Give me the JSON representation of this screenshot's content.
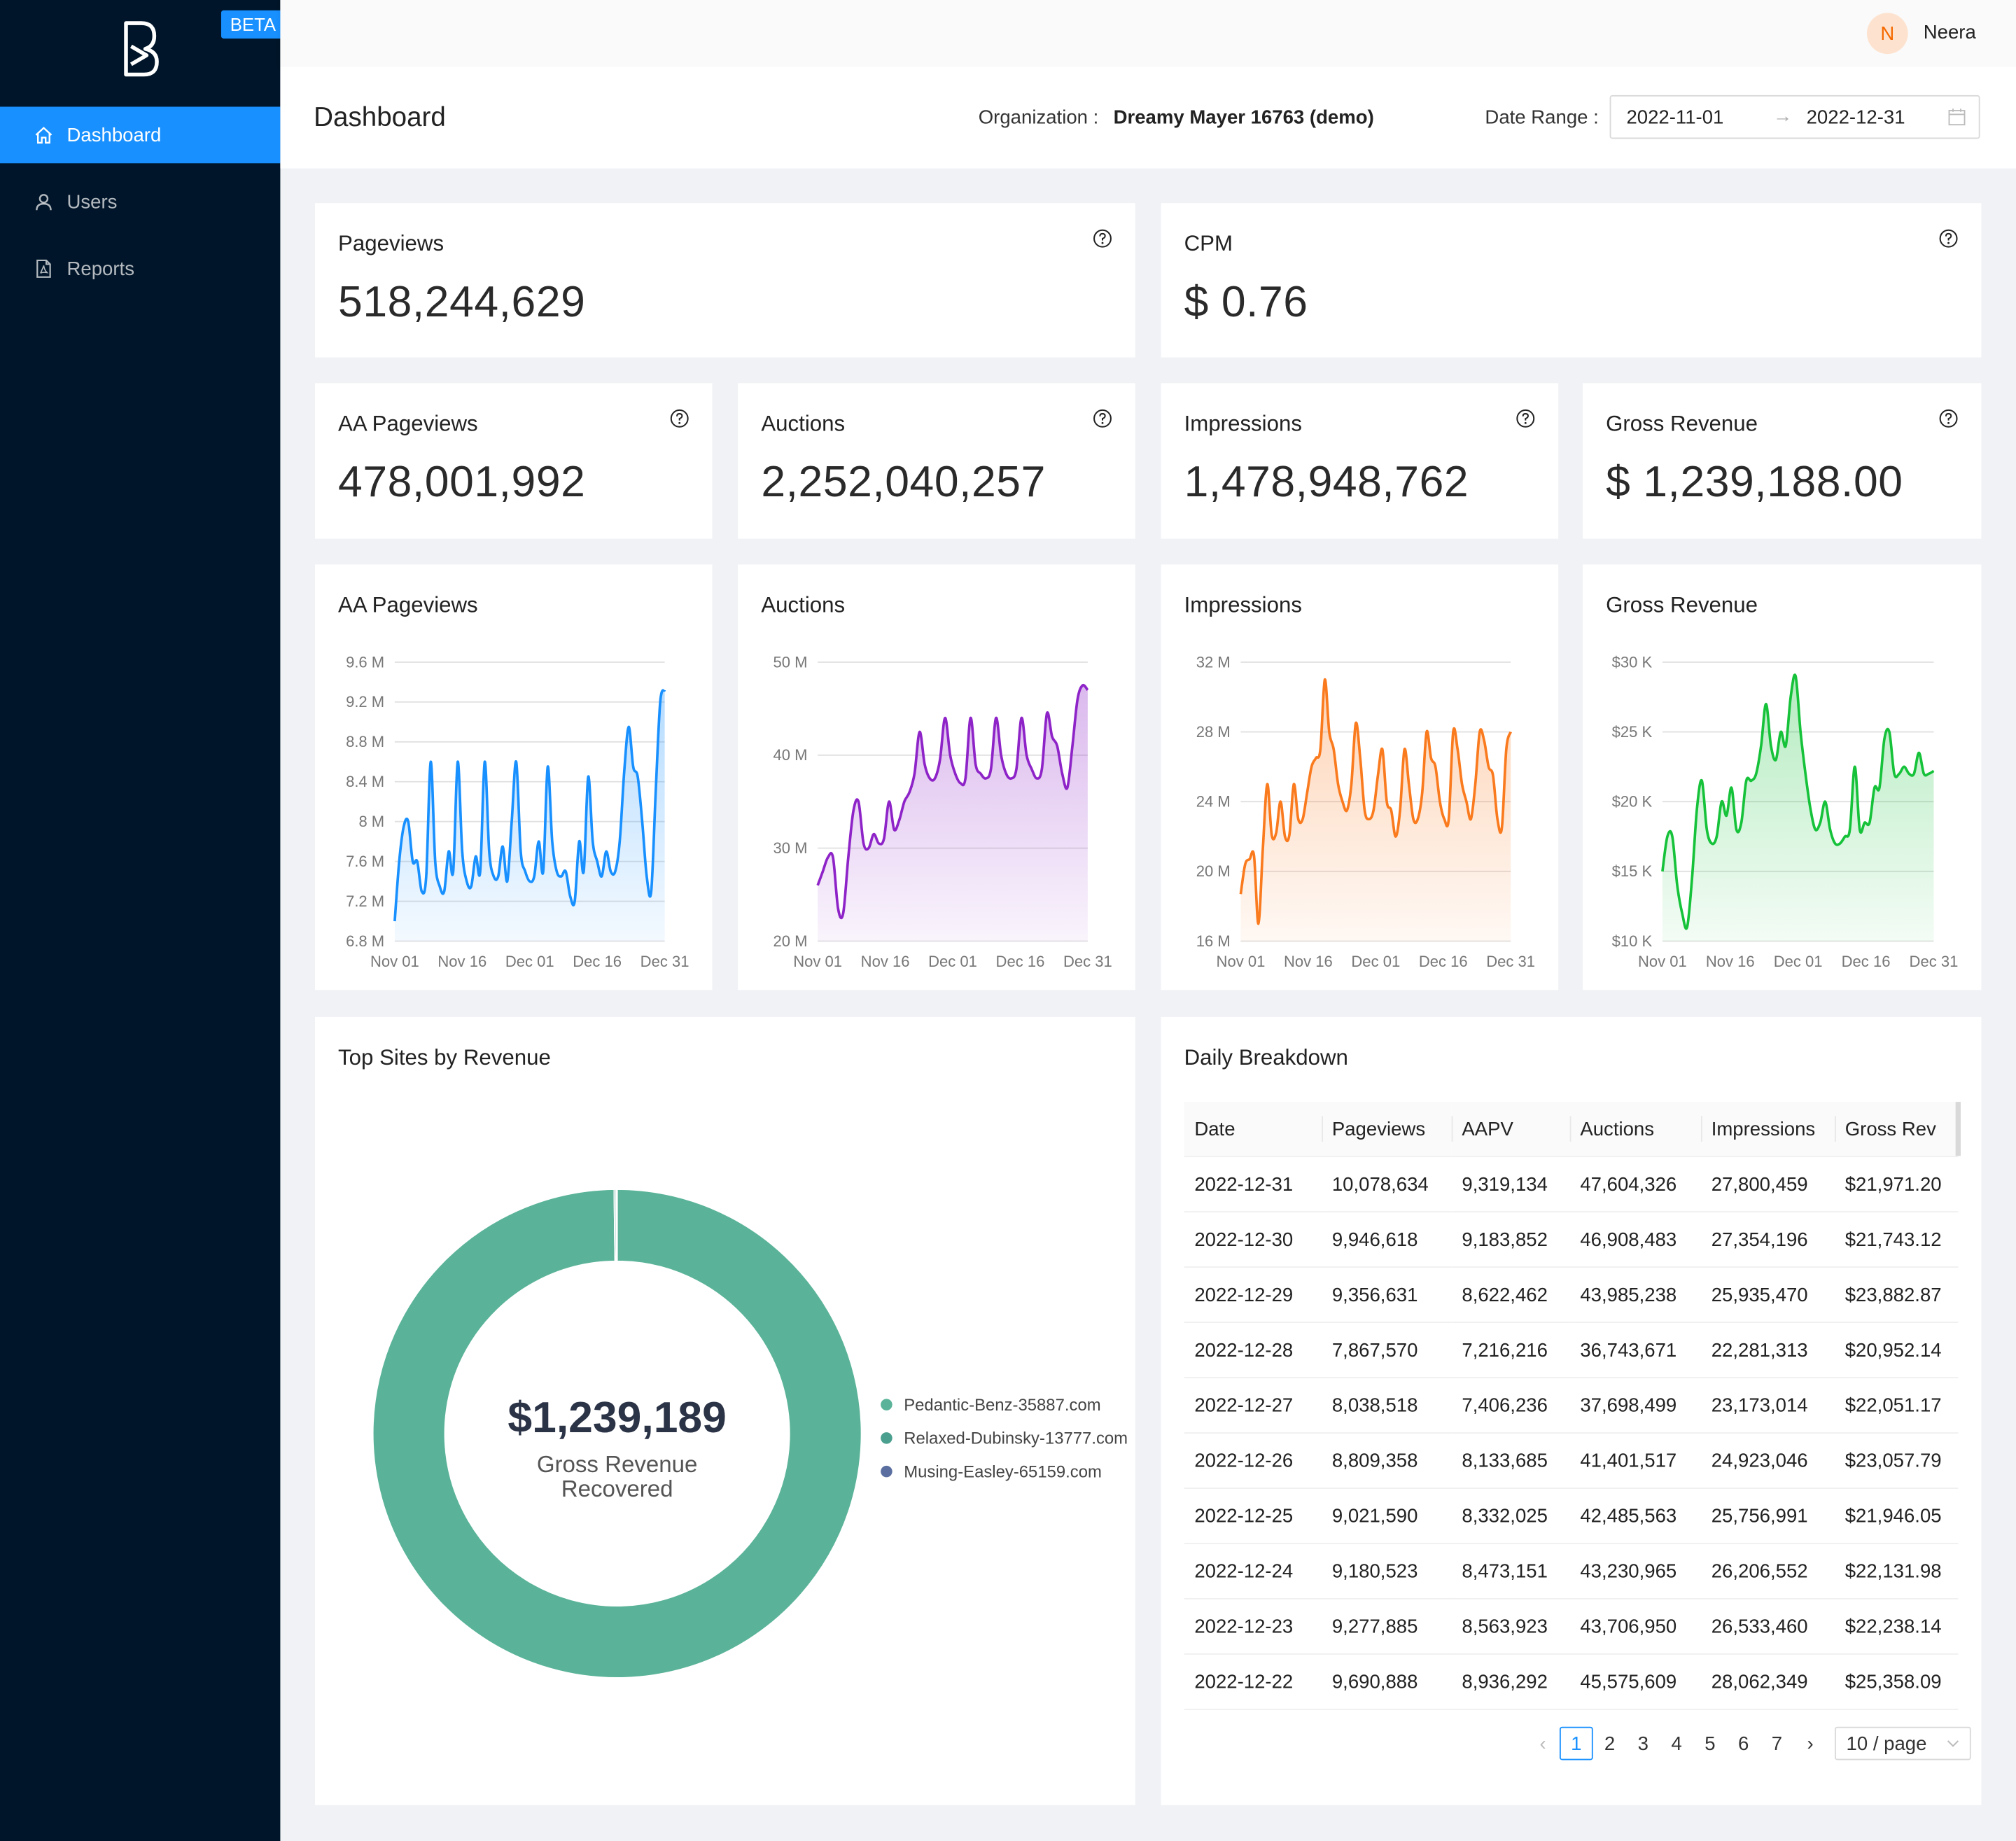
{
  "app": {
    "beta_label": "BETA",
    "user": {
      "initial": "N",
      "name": "Neera"
    }
  },
  "sidebar": {
    "items": [
      {
        "label": "Dashboard",
        "icon": "home-icon",
        "active": true
      },
      {
        "label": "Users",
        "icon": "user-icon",
        "active": false
      },
      {
        "label": "Reports",
        "icon": "file-pdf-icon",
        "active": false
      }
    ]
  },
  "header": {
    "title": "Dashboard",
    "org_label": "Organization :",
    "org_value": "Dreamy Mayer 16763 (demo)",
    "date_range_label": "Date Range :",
    "date_start": "2022-11-01",
    "date_arrow": "→",
    "date_end": "2022-12-31"
  },
  "metrics": {
    "pageviews": {
      "label": "Pageviews",
      "value": "518,244,629"
    },
    "cpm": {
      "label": "CPM",
      "value": "$ 0.76"
    },
    "aa_pageviews": {
      "label": "AA Pageviews",
      "value": "478,001,992"
    },
    "auctions": {
      "label": "Auctions",
      "value": "2,252,040,257"
    },
    "impressions": {
      "label": "Impressions",
      "value": "1,478,948,762"
    },
    "gross_revenue": {
      "label": "Gross Revenue",
      "value": "$ 1,239,188.00"
    }
  },
  "chart_data": [
    {
      "type": "area",
      "title": "AA Pageviews",
      "color": "#1890ff",
      "x_tick_labels": [
        "Nov 01",
        "Nov 16",
        "Dec 01",
        "Dec 16",
        "Dec 31"
      ],
      "y_tick_labels": [
        "6.8 M",
        "7.2 M",
        "7.6 M",
        "8 M",
        "8.4 M",
        "8.8 M",
        "9.2 M",
        "9.6 M"
      ],
      "ylim": [
        6.8,
        9.6
      ],
      "unit": "M",
      "values": [
        7.0,
        7.6,
        7.95,
        8.0,
        7.6,
        7.6,
        7.3,
        7.45,
        8.6,
        7.6,
        7.35,
        7.3,
        7.7,
        7.5,
        8.6,
        7.7,
        7.4,
        7.35,
        7.65,
        7.5,
        8.6,
        7.7,
        7.45,
        7.45,
        7.75,
        7.4,
        8.0,
        8.6,
        7.7,
        7.5,
        7.4,
        7.45,
        7.8,
        7.5,
        8.55,
        7.8,
        7.5,
        7.45,
        7.5,
        7.25,
        7.2,
        7.8,
        7.5,
        8.45,
        7.8,
        7.6,
        7.45,
        7.7,
        7.5,
        7.5,
        7.8,
        8.5,
        8.95,
        8.55,
        8.45,
        8.0,
        7.45,
        7.3,
        8.3,
        9.2,
        9.32
      ]
    },
    {
      "type": "area",
      "title": "Auctions",
      "color": "#8e24c8",
      "x_tick_labels": [
        "Nov 01",
        "Nov 16",
        "Dec 01",
        "Dec 16",
        "Dec 31"
      ],
      "y_tick_labels": [
        "20 M",
        "30 M",
        "40 M",
        "50 M"
      ],
      "ylim": [
        20,
        50
      ],
      "unit": "M",
      "values": [
        26.0,
        27.5,
        29.0,
        29.0,
        23.5,
        23.0,
        29.0,
        34.0,
        35.0,
        30.5,
        30.0,
        31.5,
        30.5,
        31.0,
        35.0,
        32.0,
        33.0,
        35.0,
        36.0,
        38.0,
        42.5,
        39.0,
        37.5,
        37.5,
        39.5,
        44.0,
        40.0,
        38.0,
        37.0,
        37.5,
        44.0,
        39.0,
        38.0,
        37.5,
        38.5,
        44.0,
        40.0,
        38.0,
        37.5,
        38.5,
        44.0,
        40.0,
        38.5,
        37.5,
        38.5,
        44.5,
        42.0,
        41.0,
        38.0,
        36.5,
        41.0,
        46.0,
        47.5,
        47.0
      ]
    },
    {
      "type": "area",
      "title": "Impressions",
      "color": "#fa7a1e",
      "x_tick_labels": [
        "Nov 01",
        "Nov 16",
        "Dec 01",
        "Dec 16",
        "Dec 31"
      ],
      "y_tick_labels": [
        "16 M",
        "20 M",
        "24 M",
        "28 M",
        "32 M"
      ],
      "ylim": [
        16,
        32
      ],
      "unit": "M",
      "values": [
        18.7,
        20.4,
        20.7,
        20.9,
        17.0,
        21.3,
        25.0,
        22.1,
        22.2,
        24.0,
        22.0,
        22.1,
        25.0,
        23.0,
        23.0,
        24.5,
        26.0,
        26.5,
        27.0,
        31.0,
        28.0,
        27.0,
        25.0,
        24.0,
        23.5,
        25.0,
        28.5,
        26.5,
        23.5,
        23.0,
        23.5,
        25.5,
        27.0,
        24.0,
        23.5,
        22.0,
        23.5,
        27.0,
        25.0,
        23.0,
        23.0,
        24.5,
        28.0,
        26.5,
        26.0,
        24.0,
        23.0,
        23.0,
        28.0,
        27.0,
        25.0,
        24.0,
        23.0,
        25.0,
        28.0,
        27.5,
        26.0,
        25.5,
        23.0,
        22.5,
        27.0,
        28.0
      ]
    },
    {
      "type": "area",
      "title": "Gross Revenue",
      "color": "#16c23a",
      "x_tick_labels": [
        "Nov 01",
        "Nov 16",
        "Dec 01",
        "Dec 16",
        "Dec 31"
      ],
      "y_tick_labels": [
        "$10 K",
        "$15 K",
        "$20 K",
        "$25 K",
        "$30 K"
      ],
      "ylim": [
        10,
        30
      ],
      "unit": "K",
      "values": [
        15.0,
        17.5,
        17.5,
        14.0,
        12.0,
        11.0,
        14.5,
        19.5,
        21.5,
        18.0,
        17.0,
        17.5,
        20.0,
        19.0,
        21.0,
        18.0,
        18.5,
        21.5,
        21.5,
        22.0,
        24.0,
        27.0,
        24.0,
        23.0,
        25.0,
        24.0,
        27.5,
        29.0,
        25.0,
        22.0,
        19.5,
        18.0,
        18.5,
        20.0,
        18.0,
        17.0,
        17.0,
        17.5,
        18.0,
        22.5,
        18.0,
        18.5,
        18.5,
        21.0,
        21.0,
        24.5,
        25.0,
        22.0,
        22.0,
        22.5,
        22.0,
        22.0,
        23.5,
        22.0,
        22.0,
        22.2
      ]
    },
    {
      "type": "pie",
      "title": "Top Sites by Revenue",
      "center_total": "$1,239,189",
      "center_caption_line1": "Gross Revenue",
      "center_caption_line2": "Recovered",
      "slices": [
        {
          "label": "Pedantic-Benz-35887.com",
          "value": 1236789,
          "color": "#5ab398"
        },
        {
          "label": "Relaxed-Dubinsky-13777.com",
          "value": 1500,
          "color": "#4a9f8e"
        },
        {
          "label": "Musing-Easley-65159.com",
          "value": 900,
          "color": "#5a6fa0"
        }
      ]
    }
  ],
  "breakdown": {
    "title": "Daily Breakdown",
    "columns": [
      "Date",
      "Pageviews",
      "AAPV",
      "Auctions",
      "Impressions",
      "Gross Rev"
    ],
    "rows": [
      [
        "2022-12-31",
        "10,078,634",
        "9,319,134",
        "47,604,326",
        "27,800,459",
        "$21,971.20"
      ],
      [
        "2022-12-30",
        "9,946,618",
        "9,183,852",
        "46,908,483",
        "27,354,196",
        "$21,743.12"
      ],
      [
        "2022-12-29",
        "9,356,631",
        "8,622,462",
        "43,985,238",
        "25,935,470",
        "$23,882.87"
      ],
      [
        "2022-12-28",
        "7,867,570",
        "7,216,216",
        "36,743,671",
        "22,281,313",
        "$20,952.14"
      ],
      [
        "2022-12-27",
        "8,038,518",
        "7,406,236",
        "37,698,499",
        "23,173,014",
        "$22,051.17"
      ],
      [
        "2022-12-26",
        "8,809,358",
        "8,133,685",
        "41,401,517",
        "24,923,046",
        "$23,057.79"
      ],
      [
        "2022-12-25",
        "9,021,590",
        "8,332,025",
        "42,485,563",
        "25,756,991",
        "$21,946.05"
      ],
      [
        "2022-12-24",
        "9,180,523",
        "8,473,151",
        "43,230,965",
        "26,206,552",
        "$22,131.98"
      ],
      [
        "2022-12-23",
        "9,277,885",
        "8,563,923",
        "43,706,950",
        "26,533,460",
        "$22,238.14"
      ],
      [
        "2022-12-22",
        "9,690,888",
        "8,936,292",
        "45,575,609",
        "28,062,349",
        "$25,358.09"
      ]
    ],
    "pagination": {
      "prev": "‹",
      "pages": [
        "1",
        "2",
        "3",
        "4",
        "5",
        "6",
        "7"
      ],
      "current": "1",
      "next": "›",
      "page_size": "10 / page"
    }
  }
}
